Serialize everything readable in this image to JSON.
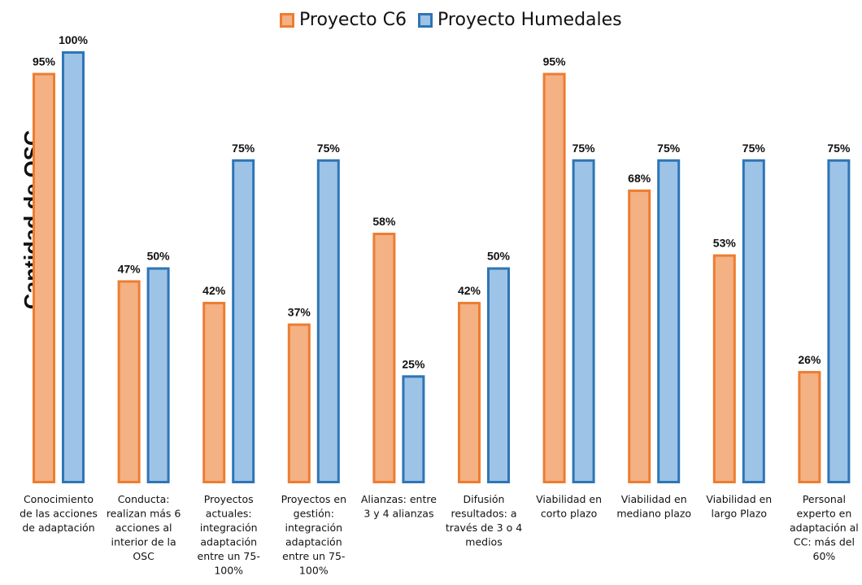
{
  "chart_data": {
    "type": "bar",
    "ylabel": "Cantidad de OSC",
    "xlabel": "",
    "ylim": [
      0,
      100
    ],
    "grid": false,
    "legend_position": "top",
    "categories": [
      "Conocimiento de las acciones de adaptación",
      "Conducta: realizan más 6 acciones al interior de la OSC",
      "Proyectos actuales: integración adaptación entre un 75-100%",
      "Proyectos en gestión: integración adaptación entre un 75-100%",
      "Alianzas: entre 3 y 4 alianzas",
      "Difusión resultados: a través de 3 o 4 medios",
      "Viabilidad en corto plazo",
      "Viabilidad en mediano plazo",
      "Viabilidad en largo Plazo",
      "Personal experto en adaptación al CC: más del 60%"
    ],
    "category_lines": [
      [
        "Conocimiento",
        "de las acciones",
        "de adaptación"
      ],
      [
        "Conducta:",
        "realizan más 6",
        "acciones al",
        "interior  de la",
        "OSC"
      ],
      [
        "Proyectos",
        "actuales:",
        "integración",
        "adaptación",
        "entre un 75-",
        "100%"
      ],
      [
        "Proyectos en",
        "gestión:",
        "integración",
        "adaptación",
        "entre un 75-",
        "100%"
      ],
      [
        "Alianzas: entre",
        "3 y 4 alianzas"
      ],
      [
        "Difusión",
        "resultados: a",
        "través de 3 o 4",
        "medios"
      ],
      [
        "Viabilidad en",
        "corto plazo"
      ],
      [
        "Viabilidad en",
        "mediano plazo"
      ],
      [
        "Viabilidad en",
        "largo Plazo"
      ],
      [
        "Personal",
        "experto en",
        "adaptación al",
        "CC: más del",
        "60%"
      ]
    ],
    "series": [
      {
        "name": "Proyecto C6",
        "values": [
          95,
          47,
          42,
          37,
          58,
          42,
          95,
          68,
          53,
          26
        ],
        "labels": [
          "95%",
          "47%",
          "42%",
          "37%",
          "58%",
          "42%",
          "95%",
          "68%",
          "53%",
          "26%"
        ],
        "fill": "#f4b183",
        "stroke": "#ed7d31"
      },
      {
        "name": "Proyecto Humedales",
        "values": [
          100,
          50,
          75,
          75,
          25,
          50,
          75,
          75,
          75,
          75
        ],
        "labels": [
          "100%",
          "50%",
          "75%",
          "75%",
          "25%",
          "50%",
          "75%",
          "75%",
          "75%",
          "75%"
        ],
        "fill": "#9dc3e6",
        "stroke": "#2e75b6"
      }
    ]
  }
}
